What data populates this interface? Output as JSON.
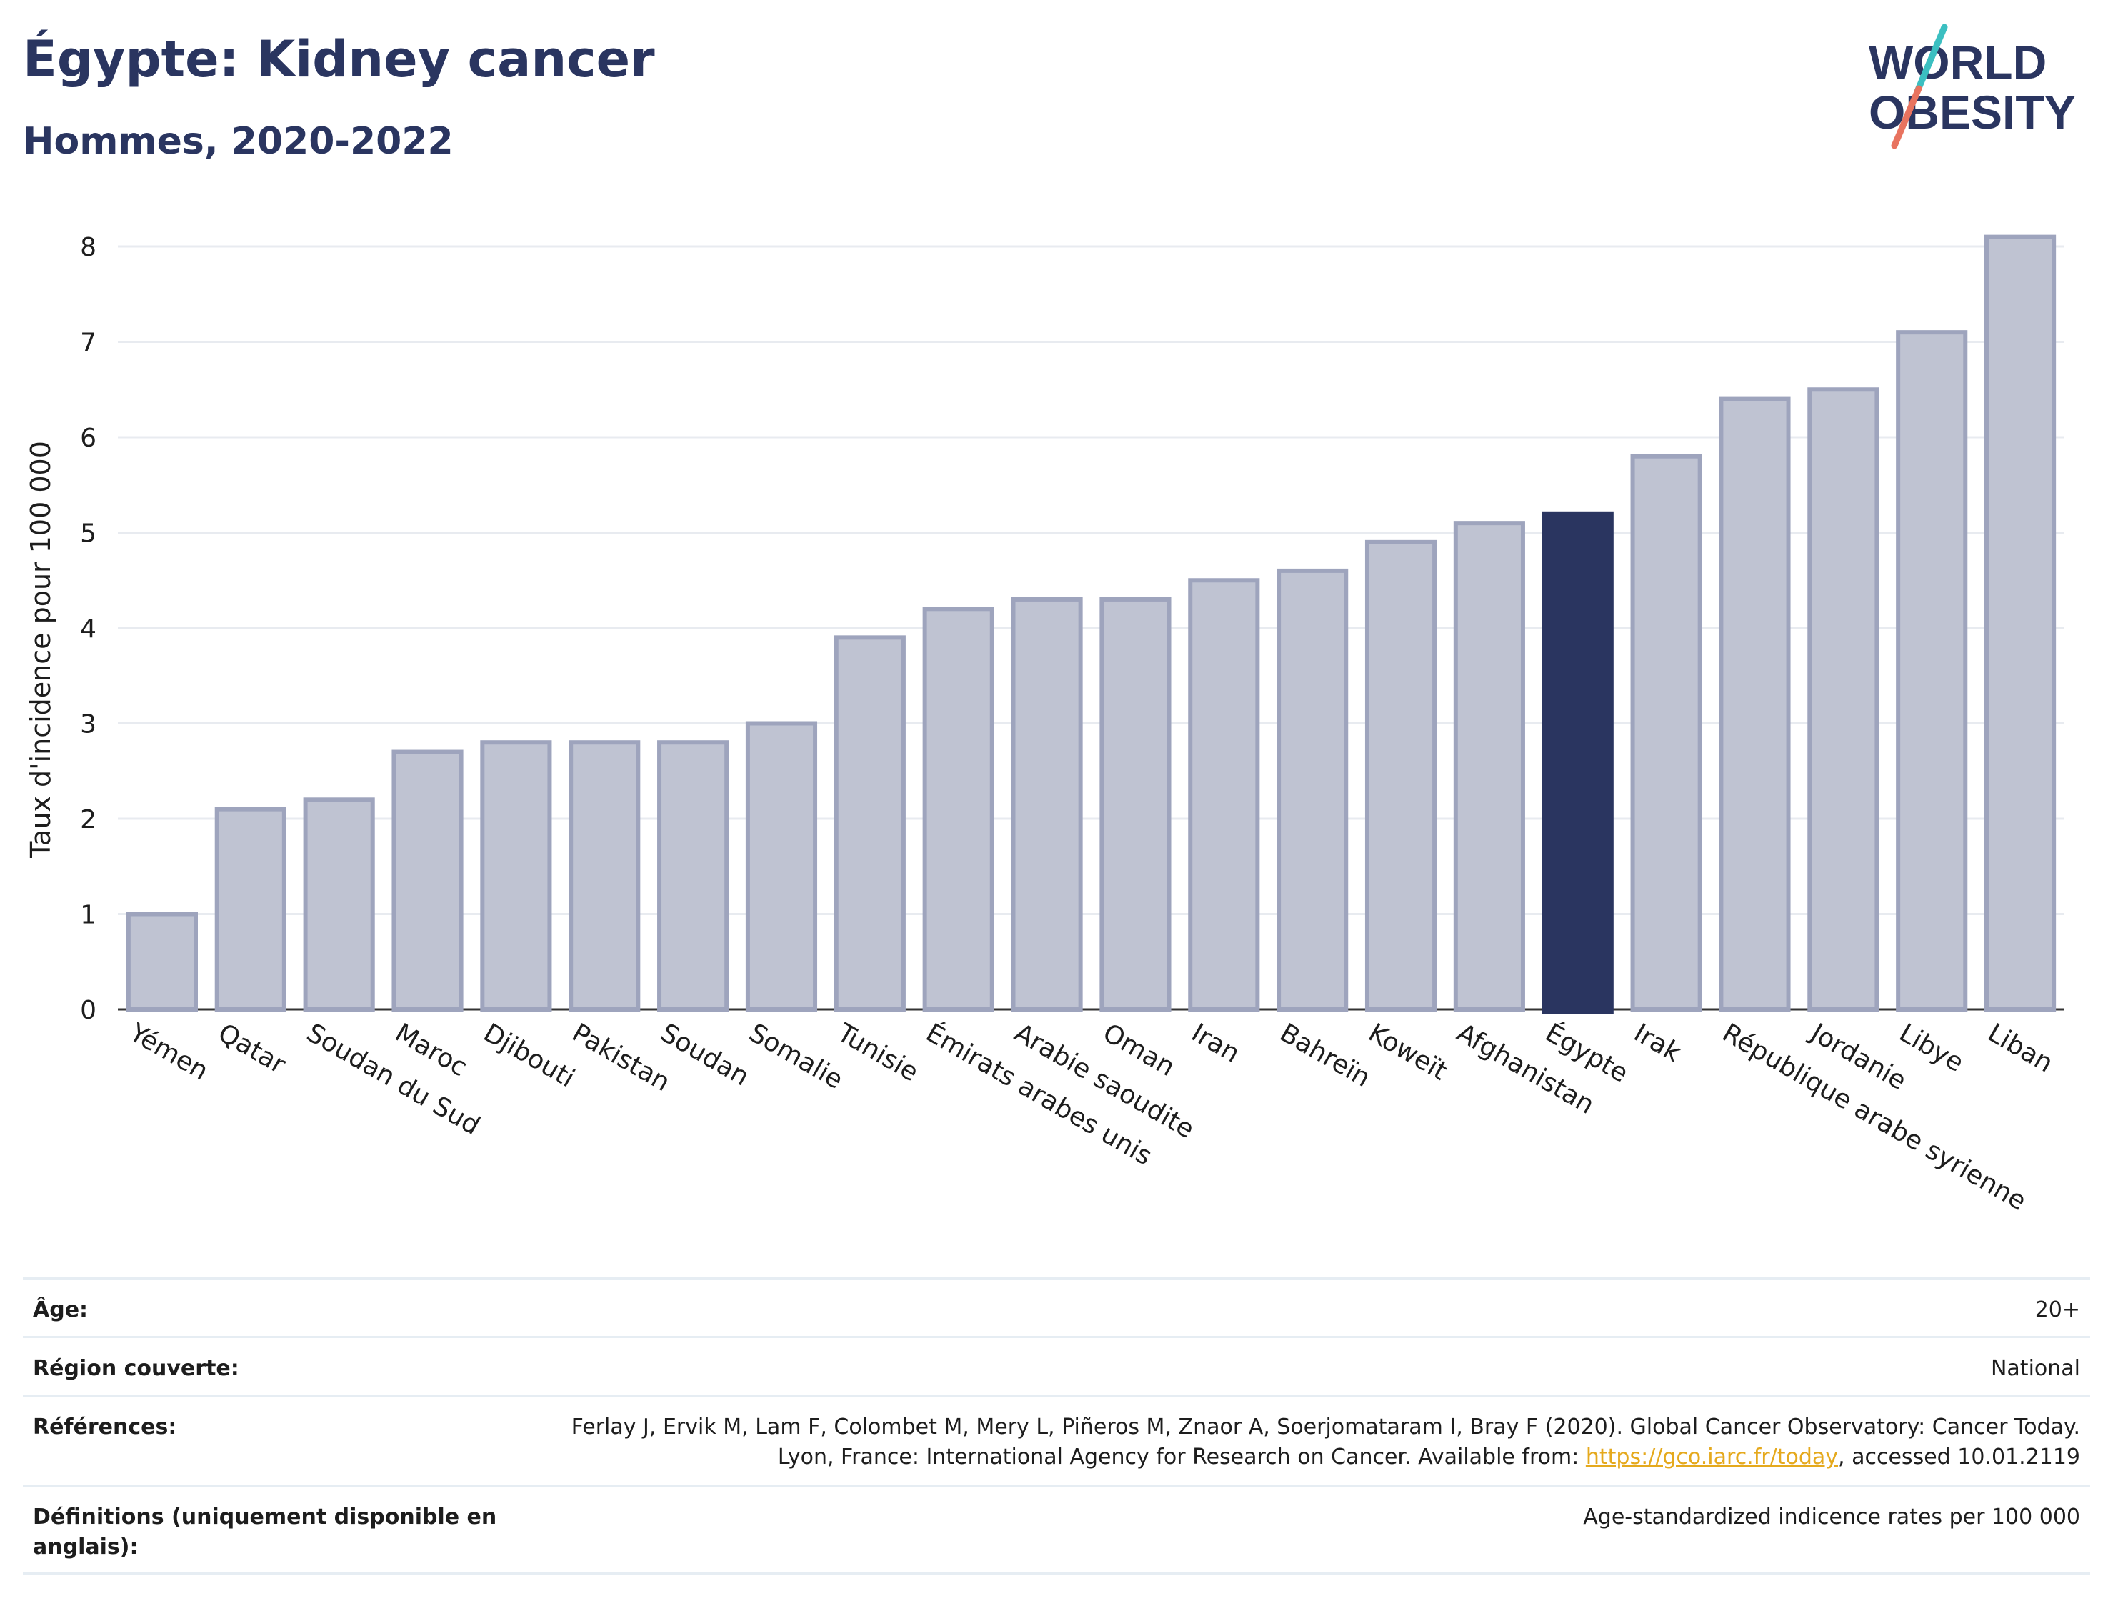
{
  "header": {
    "title": "Égypte: Kidney cancer",
    "subtitle": "Hommes, 2020-2022"
  },
  "logo": {
    "line1": "WORLD",
    "line2": "OBESITY"
  },
  "chart_data": {
    "type": "bar",
    "ylabel": "Taux d'incidence pour 100 000",
    "xlabel": "",
    "ylim": [
      0,
      8.4
    ],
    "yticks": [
      0,
      1,
      2,
      3,
      4,
      5,
      6,
      7,
      8
    ],
    "grid": true,
    "highlight": "Égypte",
    "categories": [
      "Yémen",
      "Qatar",
      "Soudan du Sud",
      "Maroc",
      "Djibouti",
      "Pakistan",
      "Soudan",
      "Somalie",
      "Tunisie",
      "Émirats arabes unis",
      "Arabie saoudite",
      "Oman",
      "Iran",
      "Bahreïn",
      "Koweït",
      "Afghanistan",
      "Égypte",
      "Irak",
      "République arabe syrienne",
      "Jordanie",
      "Libye",
      "Liban"
    ],
    "values": [
      1.0,
      2.1,
      2.2,
      2.7,
      2.8,
      2.8,
      2.8,
      3.0,
      3.9,
      4.2,
      4.3,
      4.3,
      4.5,
      4.6,
      4.9,
      5.1,
      5.2,
      5.8,
      6.4,
      6.5,
      7.1,
      8.1
    ],
    "colors": {
      "default_fill": "#bfc3d2",
      "default_stroke": "#9ea4bd",
      "highlight_fill": "#2a3560",
      "grid": "#e8ebf0",
      "axis": "#333333"
    }
  },
  "meta": {
    "age_label": "Âge:",
    "age_value": "20+",
    "region_label": "Région couverte:",
    "region_value": "National",
    "ref_label": "Références:",
    "ref_text_1": "Ferlay J, Ervik M, Lam F, Colombet M, Mery L, Piñeros M, Znaor A, Soerjomataram I, Bray F (2020). Global Cancer Observatory: Cancer Today. Lyon, France: International Agency for Research on Cancer. Available from: ",
    "ref_link": "https://gco.iarc.fr/today",
    "ref_text_2": ", accessed 10.01.2119",
    "def_label": "Définitions (uniquement disponible en anglais):",
    "def_value": "Age-standardized indicence rates per 100 000"
  }
}
